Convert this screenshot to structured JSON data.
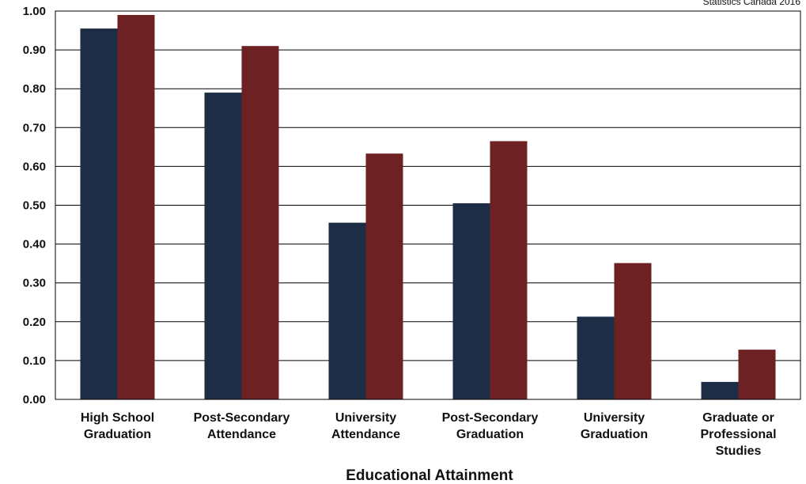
{
  "source_note": "Statistics Canada 2016",
  "colors": {
    "series_1": "#1d2d45",
    "series_2": "#6e2123",
    "grid": "#000000",
    "text": "#111111"
  },
  "chart_data": {
    "type": "bar",
    "title": "",
    "xlabel": "Educational Attainment",
    "ylabel": "",
    "ylim": [
      0,
      1.0
    ],
    "y_ticks": [
      "0.00",
      "0.10",
      "0.20",
      "0.30",
      "0.40",
      "0.50",
      "0.60",
      "0.70",
      "0.80",
      "0.90",
      "1.00"
    ],
    "grid": true,
    "legend": "none",
    "categories": [
      "High School Graduation",
      "Post-Secondary Attendance",
      "University Attendance",
      "Post-Secondary Graduation",
      "University Graduation",
      "Graduate or Professional Studies"
    ],
    "category_lines": [
      [
        "High School",
        "Graduation"
      ],
      [
        "Post-Secondary",
        "Attendance"
      ],
      [
        "University",
        "Attendance"
      ],
      [
        "Post-Secondary",
        "Graduation"
      ],
      [
        "University",
        "Graduation"
      ],
      [
        "Graduate or",
        "Professional",
        "Studies"
      ]
    ],
    "series": [
      {
        "values": [
          0.955,
          0.79,
          0.455,
          0.505,
          0.213,
          0.045
        ]
      },
      {
        "values": [
          0.99,
          0.91,
          0.633,
          0.665,
          0.351,
          0.128
        ]
      }
    ]
  }
}
